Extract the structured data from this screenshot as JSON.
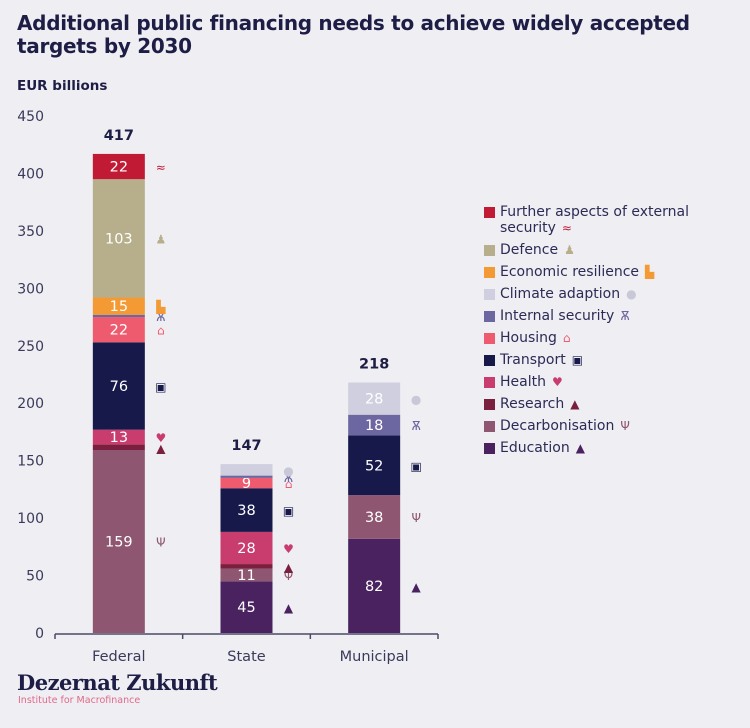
{
  "title": "Additional public financing needs to achieve widely accepted targets by 2030",
  "unit_label": "EUR billions",
  "brand": {
    "name": "Dezernat Zukunft",
    "subtitle": "Institute for Macrofinance"
  },
  "chart_data": {
    "type": "bar",
    "stacked": true,
    "title": "Additional public financing needs to achieve widely accepted targets by 2030",
    "ylabel": "EUR billions",
    "xlabel": "",
    "ylim": [
      0,
      450
    ],
    "yticks": [
      0,
      50,
      100,
      150,
      200,
      250,
      300,
      350,
      400,
      450
    ],
    "grid": false,
    "legend_position": "right",
    "categories": [
      "Federal",
      "State",
      "Municipal"
    ],
    "totals": [
      417,
      147,
      218
    ],
    "series": [
      {
        "name": "Education",
        "color": "#4a2260",
        "icon": "graduation-cap",
        "values": [
          0,
          45,
          82
        ],
        "labels": [
          null,
          "45",
          "82"
        ]
      },
      {
        "name": "Decarbonisation",
        "color": "#8e5670",
        "icon": "wind-turbine",
        "values": [
          159,
          11,
          38
        ],
        "labels": [
          "159",
          "11",
          "38"
        ]
      },
      {
        "name": "Research",
        "color": "#7a1f3d",
        "icon": "flask",
        "values": [
          5,
          4,
          0
        ],
        "labels": [
          null,
          null,
          null
        ]
      },
      {
        "name": "Health",
        "color": "#c83c6e",
        "icon": "heart-pulse",
        "values": [
          13,
          28,
          0
        ],
        "labels": [
          "13",
          "28",
          null
        ]
      },
      {
        "name": "Transport",
        "color": "#17194a",
        "icon": "tram",
        "values": [
          76,
          38,
          52
        ],
        "labels": [
          "76",
          "38",
          "52"
        ]
      },
      {
        "name": "Housing",
        "color": "#ef5b6e",
        "icon": "house",
        "values": [
          22,
          9,
          0
        ],
        "labels": [
          "22",
          "9",
          null
        ]
      },
      {
        "name": "Internal security",
        "color": "#6c67a0",
        "icon": "siren",
        "values": [
          2,
          2,
          18
        ],
        "labels": [
          null,
          null,
          "18"
        ]
      },
      {
        "name": "Climate adaption",
        "color": "#cfcfdf",
        "icon": "tree",
        "values": [
          0,
          10,
          28
        ],
        "labels": [
          null,
          null,
          "28"
        ]
      },
      {
        "name": "Economic resilience",
        "color": "#f39a34",
        "icon": "factory",
        "values": [
          15,
          0,
          0
        ],
        "labels": [
          "15",
          null,
          null
        ]
      },
      {
        "name": "Defence",
        "color": "#b7af8b",
        "icon": "soldier",
        "values": [
          103,
          0,
          0
        ],
        "labels": [
          "103",
          null,
          null
        ]
      },
      {
        "name": "Further aspects of external security",
        "color": "#c01a35",
        "icon": "handshake",
        "values": [
          22,
          0,
          0
        ],
        "labels": [
          "22",
          null,
          null
        ]
      }
    ],
    "legend_order": [
      "Further aspects of external security",
      "Defence",
      "Economic resilience",
      "Climate adaption",
      "Internal security",
      "Housing",
      "Transport",
      "Health",
      "Research",
      "Decarbonisation",
      "Education"
    ]
  }
}
